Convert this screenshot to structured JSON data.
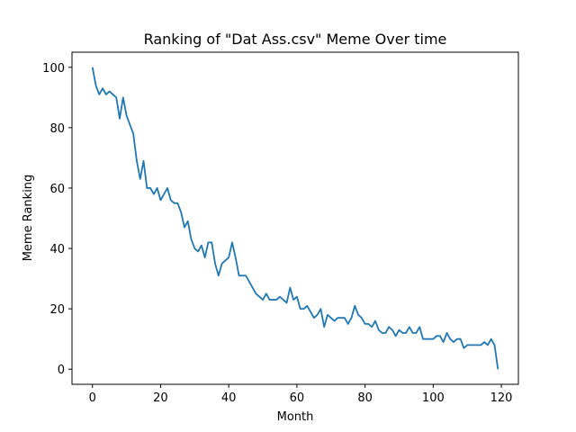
{
  "chart_data": {
    "type": "line",
    "title": "Ranking of \"Dat Ass.csv\" Meme Over time",
    "xlabel": "Month",
    "ylabel": "Meme Ranking",
    "xlim": [
      -6,
      125
    ],
    "ylim": [
      -5,
      105
    ],
    "xticks": [
      0,
      20,
      40,
      60,
      80,
      100,
      120
    ],
    "yticks": [
      0,
      20,
      40,
      60,
      80,
      100
    ],
    "grid": false,
    "line_color": "#1f77b4",
    "series": [
      {
        "x_start": 0,
        "x_step": 1,
        "values": [
          100,
          94,
          91,
          93,
          91,
          92,
          91,
          90,
          83,
          90,
          84,
          81,
          78,
          69,
          63,
          69,
          60,
          60,
          58,
          60,
          56,
          58,
          60,
          56,
          55,
          55,
          52,
          47,
          49,
          43,
          40,
          39,
          41,
          37,
          42,
          42,
          35,
          31,
          35,
          36,
          37,
          42,
          37,
          31,
          31,
          31,
          29,
          27,
          25,
          24,
          23,
          25,
          23,
          23,
          23,
          24,
          23,
          22,
          27,
          23,
          24,
          20,
          20,
          21,
          19,
          17,
          18,
          20,
          14,
          18,
          17,
          16,
          17,
          17,
          17,
          15,
          17,
          21,
          18,
          17,
          15,
          15,
          14,
          16,
          13,
          12,
          12,
          14,
          13,
          11,
          13,
          12,
          12,
          14,
          12,
          12,
          14,
          10,
          10,
          10,
          10,
          11,
          11,
          9,
          12,
          10,
          9,
          10,
          10,
          7,
          8,
          8,
          8,
          8,
          8,
          9,
          8,
          10,
          8,
          0
        ]
      }
    ]
  }
}
